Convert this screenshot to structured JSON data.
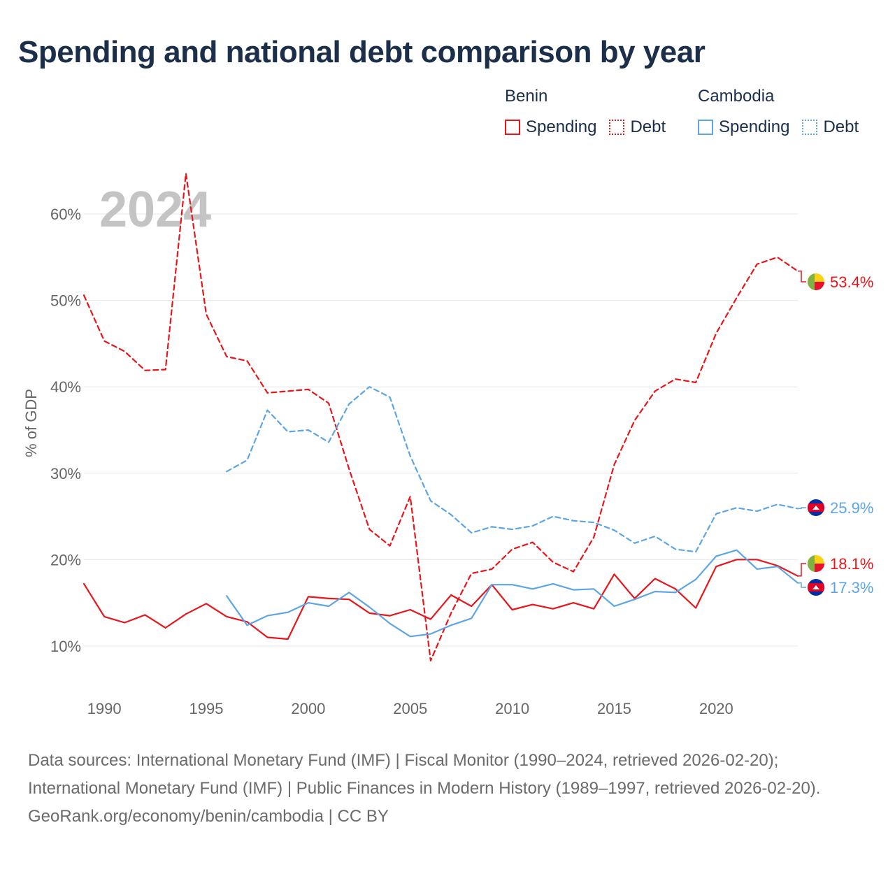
{
  "title": "Spending and national debt comparison by year",
  "legend": {
    "groups": [
      {
        "country": "Benin",
        "color": "#e8161b",
        "items": [
          {
            "label": "Spending",
            "style": "solid"
          },
          {
            "label": "Debt",
            "style": "dotted"
          }
        ]
      },
      {
        "country": "Cambodia",
        "color": "#5ea6e3",
        "items": [
          {
            "label": "Spending",
            "style": "solid"
          },
          {
            "label": "Debt",
            "style": "dotted"
          }
        ]
      }
    ]
  },
  "chart_data": {
    "type": "line",
    "year_label": "2024",
    "ylabel": "% of GDP",
    "xlabel": "",
    "xlim": [
      1989,
      2024
    ],
    "ylim": [
      4,
      66
    ],
    "yticks": [
      10,
      20,
      30,
      40,
      50,
      60
    ],
    "ytick_labels": [
      "10%",
      "20%",
      "30%",
      "40%",
      "50%",
      "60%"
    ],
    "xticks": [
      1990,
      1995,
      2000,
      2005,
      2010,
      2015,
      2020
    ],
    "xtick_labels": [
      "1990",
      "1995",
      "2000",
      "2005",
      "2010",
      "2015",
      "2020"
    ],
    "grid": true,
    "series": [
      {
        "name": "Benin Debt",
        "country": "Benin",
        "measure": "Debt",
        "color": "#e8161b",
        "dash": true,
        "x": [
          1989,
          1990,
          1991,
          1992,
          1993,
          1994,
          1995,
          1996,
          1997,
          1998,
          1999,
          2000,
          2001,
          2002,
          2003,
          2004,
          2005,
          2006,
          2007,
          2008,
          2009,
          2010,
          2011,
          2012,
          2013,
          2014,
          2015,
          2016,
          2017,
          2018,
          2019,
          2020,
          2021,
          2022,
          2023,
          2024
        ],
        "values": [
          50.6,
          45.3,
          44.1,
          41.9,
          42.0,
          64.7,
          48.4,
          43.5,
          43.0,
          39.3,
          39.5,
          39.7,
          38.1,
          30.5,
          23.5,
          21.6,
          27.3,
          8.3,
          13.8,
          18.4,
          18.9,
          21.2,
          22.0,
          19.7,
          18.6,
          22.6,
          31.0,
          36.1,
          39.5,
          40.9,
          40.5,
          46.2,
          50.3,
          54.2,
          55.0,
          53.4
        ],
        "end_label": "53.4%"
      },
      {
        "name": "Cambodia Debt",
        "country": "Cambodia",
        "measure": "Debt",
        "color": "#5ea6e3",
        "dash": true,
        "x": [
          1996,
          1997,
          1998,
          1999,
          2000,
          2001,
          2002,
          2003,
          2004,
          2005,
          2006,
          2007,
          2008,
          2009,
          2010,
          2011,
          2012,
          2013,
          2014,
          2015,
          2016,
          2017,
          2018,
          2019,
          2020,
          2021,
          2022,
          2023,
          2024
        ],
        "values": [
          30.2,
          31.5,
          37.3,
          34.8,
          35.0,
          33.6,
          38.0,
          40.0,
          38.8,
          32.0,
          26.8,
          25.2,
          23.1,
          23.8,
          23.5,
          23.9,
          25.0,
          24.5,
          24.3,
          23.4,
          21.9,
          22.7,
          21.2,
          20.9,
          25.3,
          26.0,
          25.6,
          26.4,
          25.9
        ],
        "end_label": "25.9%"
      },
      {
        "name": "Benin Spending",
        "country": "Benin",
        "measure": "Spending",
        "color": "#e8161b",
        "dash": false,
        "x": [
          1989,
          1990,
          1991,
          1992,
          1993,
          1994,
          1995,
          1996,
          1997,
          1998,
          1999,
          2000,
          2001,
          2002,
          2003,
          2004,
          2005,
          2006,
          2007,
          2008,
          2009,
          2010,
          2011,
          2012,
          2013,
          2014,
          2015,
          2016,
          2017,
          2018,
          2019,
          2020,
          2021,
          2022,
          2023,
          2024
        ],
        "values": [
          17.2,
          13.4,
          12.7,
          13.6,
          12.1,
          13.7,
          14.9,
          13.4,
          12.8,
          11.0,
          10.8,
          15.7,
          15.5,
          15.4,
          13.8,
          13.5,
          14.2,
          13.1,
          15.9,
          14.6,
          17.1,
          14.2,
          14.8,
          14.3,
          15.0,
          14.3,
          18.3,
          15.5,
          17.8,
          16.6,
          14.4,
          19.2,
          20.0,
          20.0,
          19.3,
          18.1
        ],
        "end_label": "18.1%"
      },
      {
        "name": "Cambodia Spending",
        "country": "Cambodia",
        "measure": "Spending",
        "color": "#5ea6e3",
        "dash": false,
        "x": [
          1996,
          1997,
          1998,
          1999,
          2000,
          2001,
          2002,
          2003,
          2004,
          2005,
          2006,
          2007,
          2008,
          2009,
          2010,
          2011,
          2012,
          2013,
          2014,
          2015,
          2016,
          2017,
          2018,
          2019,
          2020,
          2021,
          2022,
          2023,
          2024
        ],
        "values": [
          15.8,
          12.4,
          13.5,
          13.9,
          15.0,
          14.6,
          16.2,
          14.5,
          12.6,
          11.1,
          11.4,
          12.4,
          13.2,
          17.1,
          17.1,
          16.6,
          17.2,
          16.5,
          16.6,
          14.6,
          15.4,
          16.3,
          16.2,
          17.7,
          20.4,
          21.1,
          18.9,
          19.2,
          17.3
        ],
        "end_label": "17.3%"
      }
    ]
  },
  "footer": {
    "sources": "Data sources: International Monetary Fund (IMF) | Fiscal Monitor (1990–2024, retrieved 2026-02-20); International Monetary Fund (IMF) | Public Finances in Modern History (1989–1997, retrieved 2026-02-20).",
    "attribution": "GeoRank.org/economy/benin/cambodia | CC BY"
  }
}
